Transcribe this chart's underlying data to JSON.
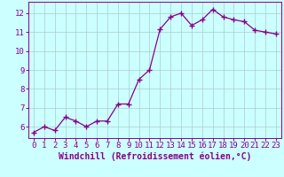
{
  "x": [
    0,
    1,
    2,
    3,
    4,
    5,
    6,
    7,
    8,
    9,
    10,
    11,
    12,
    13,
    14,
    15,
    16,
    17,
    18,
    19,
    20,
    21,
    22,
    23
  ],
  "y": [
    5.7,
    6.0,
    5.8,
    6.5,
    6.3,
    6.0,
    6.3,
    6.3,
    7.2,
    7.2,
    8.5,
    9.0,
    11.15,
    11.8,
    12.0,
    11.35,
    11.65,
    12.2,
    11.8,
    11.65,
    11.55,
    11.1,
    11.0,
    10.9
  ],
  "line_color": "#880088",
  "marker": "+",
  "marker_size": 4,
  "bg_color": "#ccffff",
  "grid_color": "#aacccc",
  "xlabel": "Windchill (Refroidissement éolien,°C)",
  "xlabel_fontsize": 7,
  "tick_fontsize": 6.5,
  "ylim": [
    5.4,
    12.6
  ],
  "xlim": [
    -0.5,
    23.5
  ],
  "yticks": [
    6,
    7,
    8,
    9,
    10,
    11,
    12
  ],
  "xticks": [
    0,
    1,
    2,
    3,
    4,
    5,
    6,
    7,
    8,
    9,
    10,
    11,
    12,
    13,
    14,
    15,
    16,
    17,
    18,
    19,
    20,
    21,
    22,
    23
  ]
}
